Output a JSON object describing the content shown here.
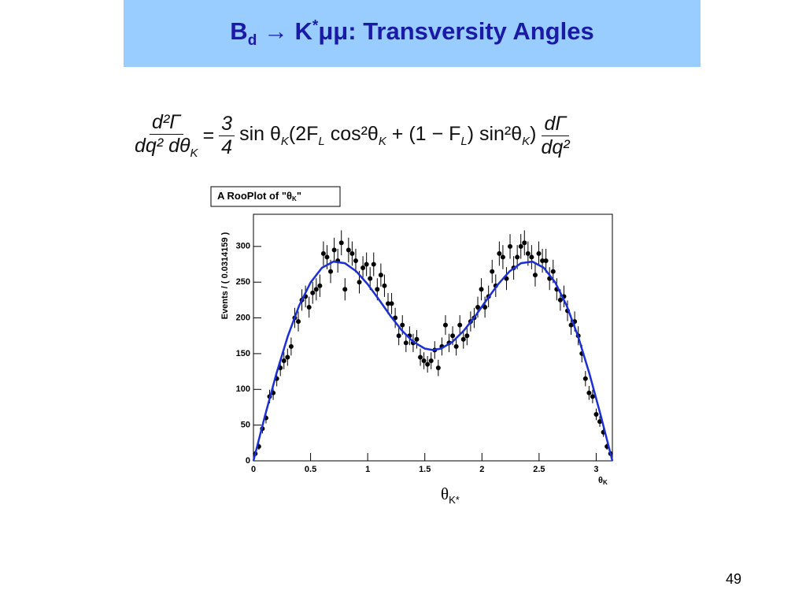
{
  "slide": {
    "title": {
      "parts": [
        "B",
        "d",
        " → K",
        "*",
        "μμ: Transversity Angles"
      ]
    },
    "formula": {
      "lhs": {
        "num": "d²Γ",
        "den": "dq² dθ",
        "den_sub": "K"
      },
      "eq": "=",
      "coef": {
        "num": "3",
        "den": "4"
      },
      "body": [
        "sin θ",
        "K",
        "(2F",
        "L",
        " cos²θ",
        "K",
        " + (1 − F",
        "L",
        ") sin²θ",
        "K",
        ")"
      ],
      "rhs": {
        "num": "dΓ",
        "den": "dq²"
      }
    },
    "caption": {
      "parts": [
        "θ",
        "K*"
      ]
    },
    "page_number": "49"
  },
  "chart_data": {
    "type": "scatter",
    "title": {
      "parts": [
        "A RooPlot of \"θ",
        "K",
        "\""
      ]
    },
    "ylabel": "Events / ( 0.0314159 )",
    "xlabel": {
      "parts": [
        "θ",
        "K"
      ]
    },
    "xlim": [
      0,
      3.1416
    ],
    "ylim": [
      0,
      345
    ],
    "xticks": [
      0,
      0.5,
      1,
      1.5,
      2,
      2.5,
      3
    ],
    "yticks": [
      0,
      50,
      100,
      150,
      200,
      250,
      300
    ],
    "series": [
      {
        "type": "scatter",
        "color": "#000000",
        "x": [
          0.0157,
          0.0471,
          0.0785,
          0.11,
          0.1414,
          0.1728,
          0.2042,
          0.2356,
          0.267,
          0.2985,
          0.3299,
          0.3613,
          0.3927,
          0.4241,
          0.4555,
          0.4869,
          0.5184,
          0.5498,
          0.5812,
          0.6126,
          0.644,
          0.6754,
          0.7069,
          0.7383,
          0.7697,
          0.8011,
          0.8325,
          0.8639,
          0.8954,
          0.9268,
          0.9582,
          0.9896,
          1.021,
          1.0524,
          1.0838,
          1.1153,
          1.1467,
          1.1781,
          1.2095,
          1.2409,
          1.2723,
          1.3038,
          1.3352,
          1.3666,
          1.398,
          1.4294,
          1.4608,
          1.4923,
          1.5237,
          1.5551,
          1.5865,
          1.6179,
          1.6493,
          1.6808,
          1.7122,
          1.7436,
          1.775,
          1.8064,
          1.8378,
          1.8693,
          1.9007,
          1.9321,
          1.9635,
          1.9949,
          2.0263,
          2.0577,
          2.0892,
          2.1206,
          2.152,
          2.1834,
          2.2148,
          2.2462,
          2.2777,
          2.3091,
          2.3405,
          2.3719,
          2.4033,
          2.4347,
          2.4662,
          2.4976,
          2.529,
          2.5604,
          2.5918,
          2.6232,
          2.6546,
          2.6861,
          2.7175,
          2.7489,
          2.7803,
          2.8117,
          2.8431,
          2.8746,
          2.906,
          2.9374,
          2.9688,
          3.0002,
          3.0316,
          3.0631,
          3.0945,
          3.1259
        ],
        "values": [
          10,
          20,
          45,
          60,
          90,
          95,
          115,
          130,
          140,
          145,
          160,
          200,
          195,
          225,
          230,
          215,
          235,
          240,
          245,
          290,
          285,
          265,
          295,
          280,
          305,
          240,
          295,
          290,
          280,
          250,
          270,
          275,
          255,
          275,
          240,
          260,
          245,
          220,
          220,
          200,
          175,
          190,
          165,
          175,
          165,
          170,
          145,
          140,
          135,
          140,
          155,
          130,
          160,
          190,
          165,
          175,
          160,
          190,
          170,
          175,
          195,
          200,
          215,
          240,
          215,
          230,
          265,
          245,
          290,
          285,
          255,
          300,
          270,
          285,
          300,
          305,
          290,
          285,
          260,
          290,
          280,
          280,
          255,
          265,
          240,
          225,
          230,
          210,
          190,
          195,
          175,
          150,
          115,
          95,
          90,
          65,
          55,
          40,
          20,
          10
        ],
        "errors": [
          3.2,
          4.5,
          6.7,
          7.7,
          9.5,
          9.7,
          10.7,
          11.4,
          11.8,
          12.0,
          12.6,
          14.1,
          14.0,
          15.0,
          15.2,
          14.7,
          15.3,
          15.5,
          15.7,
          17.0,
          16.9,
          16.3,
          17.2,
          16.7,
          17.5,
          15.5,
          17.2,
          17.0,
          16.7,
          15.8,
          16.4,
          16.6,
          16.0,
          16.6,
          15.5,
          16.1,
          15.7,
          14.8,
          14.8,
          14.1,
          13.2,
          13.8,
          12.8,
          13.2,
          12.8,
          13.0,
          12.0,
          11.8,
          11.6,
          11.8,
          12.4,
          11.4,
          12.6,
          13.8,
          12.8,
          13.2,
          12.6,
          13.8,
          13.0,
          13.2,
          14.0,
          14.1,
          14.7,
          15.5,
          14.7,
          15.2,
          16.3,
          15.7,
          17.0,
          16.9,
          16.0,
          17.3,
          16.4,
          16.9,
          17.3,
          17.5,
          17.0,
          16.9,
          16.1,
          17.0,
          16.7,
          16.7,
          16.0,
          16.3,
          15.5,
          15.0,
          15.2,
          14.5,
          13.8,
          14.0,
          13.2,
          12.2,
          10.7,
          9.7,
          9.5,
          8.1,
          7.4,
          6.3,
          4.5,
          3.2
        ]
      },
      {
        "type": "line",
        "color": "#1c2fd6",
        "x": [
          0,
          0.1,
          0.2,
          0.3,
          0.4,
          0.5,
          0.6,
          0.7,
          0.8,
          0.9,
          1.0,
          1.1,
          1.2,
          1.3,
          1.4,
          1.5,
          1.5708,
          1.6416,
          1.7416,
          1.8416,
          1.9416,
          2.0416,
          2.1416,
          2.2416,
          2.3416,
          2.4416,
          2.5416,
          2.6416,
          2.7416,
          2.8416,
          2.9416,
          3.0416,
          3.1416
        ],
        "values": [
          0,
          62.4,
          121.4,
          173.9,
          217.2,
          249.6,
          270.2,
          278.8,
          276.6,
          265.2,
          247.1,
          225.3,
          202.6,
          182.2,
          166.4,
          157.1,
          155.1,
          157.1,
          166.4,
          182.2,
          202.6,
          225.3,
          247.1,
          265.2,
          276.6,
          278.8,
          270.2,
          249.6,
          217.2,
          173.9,
          121.4,
          62.4,
          0
        ]
      }
    ]
  }
}
